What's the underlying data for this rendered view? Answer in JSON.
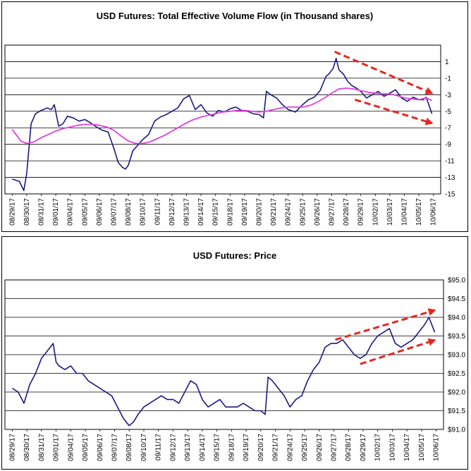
{
  "chart_data": [
    {
      "type": "line",
      "title": "USD Futures: Total Effective Volume Flow (in Thousand shares)",
      "ylim": [
        -15,
        3
      ],
      "yticks": [
        1,
        -1,
        -3,
        -5,
        -7,
        -9,
        -11,
        -13,
        -15
      ],
      "ytick_labels": [
        "1",
        "-1",
        "-3",
        "-5",
        "-7",
        "-9",
        "-11",
        "-13",
        "-15"
      ],
      "grid": true,
      "x_labels": [
        "08/29/17",
        "08/30/17",
        "08/31/17",
        "09/01/17",
        "09/04/17",
        "09/05/17",
        "09/06/17",
        "09/07/17",
        "09/08/17",
        "09/10/17",
        "09/11/17",
        "09/12/17",
        "09/13/17",
        "09/14/17",
        "09/15/17",
        "09/18/17",
        "09/19/17",
        "09/20/17",
        "09/21/17",
        "09/24/17",
        "09/25/17",
        "09/26/17",
        "09/27/17",
        "09/28/17",
        "09/29/17",
        "10/02/17",
        "10/03/17",
        "10/04/17",
        "10/05/17",
        "10/06/17"
      ],
      "series": [
        {
          "color": "#1a1a80",
          "x": [
            0,
            0.5,
            0.8,
            1.0,
            1.3,
            1.6,
            2.0,
            2.4,
            2.7,
            2.9,
            3.2,
            3.5,
            3.8,
            4.2,
            4.6,
            5.0,
            5.4,
            5.8,
            6.2,
            6.6,
            7.0,
            7.3,
            7.6,
            7.8,
            8.0,
            8.3,
            8.6,
            9.0,
            9.4,
            9.8,
            10.2,
            10.6,
            11.0,
            11.4,
            11.8,
            12.2,
            12.6,
            13.0,
            13.4,
            13.8,
            14.2,
            14.6,
            15.0,
            15.4,
            15.8,
            16.2,
            16.6,
            17.0,
            17.3,
            17.5,
            17.8,
            18.2,
            18.6,
            19.0,
            19.5,
            20.0,
            20.4,
            20.8,
            21.2,
            21.6,
            21.8,
            22.1,
            22.3,
            22.5,
            22.8,
            23.1,
            23.4,
            23.7,
            24.0,
            24.4,
            24.8,
            25.2,
            25.6,
            26.0,
            26.4,
            26.8,
            27.2,
            27.6,
            28.0,
            28.3,
            28.5,
            28.7,
            28.9
          ],
          "values": [
            -13.2,
            -13.5,
            -14.6,
            -12.5,
            -6.5,
            -5.3,
            -4.9,
            -4.6,
            -4.8,
            -4.2,
            -6.8,
            -6.5,
            -5.6,
            -5.8,
            -6.2,
            -6.0,
            -6.4,
            -6.9,
            -7.3,
            -7.5,
            -9.5,
            -11.2,
            -11.8,
            -12.0,
            -11.5,
            -9.8,
            -9.2,
            -8.4,
            -7.8,
            -6.2,
            -5.7,
            -5.4,
            -5.0,
            -4.6,
            -3.5,
            -3.1,
            -4.8,
            -4.2,
            -5.2,
            -5.6,
            -4.9,
            -5.1,
            -4.7,
            -4.5,
            -4.9,
            -5.0,
            -5.3,
            -5.4,
            -5.8,
            -2.6,
            -3.0,
            -3.4,
            -4.2,
            -4.8,
            -5.1,
            -4.2,
            -3.6,
            -3.3,
            -2.5,
            -0.8,
            -0.5,
            0.2,
            1.4,
            0.0,
            -0.5,
            -1.4,
            -1.9,
            -2.2,
            -2.6,
            -3.4,
            -3.0,
            -2.6,
            -3.2,
            -2.8,
            -2.4,
            -3.4,
            -3.8,
            -3.3,
            -3.6,
            -3.6,
            -3.3,
            -4.3,
            -5.3
          ]
        },
        {
          "color": "#e040e0",
          "x": [
            0,
            0.3,
            0.6,
            1.0,
            1.5,
            2.0,
            2.5,
            3.0,
            3.5,
            4.0,
            4.5,
            5.0,
            5.5,
            6.0,
            6.5,
            7.0,
            7.5,
            8.0,
            8.5,
            9.0,
            9.5,
            10.0,
            10.5,
            11.0,
            11.5,
            12.0,
            12.5,
            13.0,
            13.5,
            14.0,
            14.5,
            15.0,
            15.5,
            16.0,
            16.5,
            17.0,
            17.5,
            18.0,
            18.5,
            19.0,
            19.5,
            20.0,
            20.5,
            21.0,
            21.5,
            22.0,
            22.5,
            23.0,
            23.5,
            24.0,
            24.5,
            25.0,
            25.5,
            26.0,
            26.5,
            27.0,
            27.5,
            28.0,
            28.5,
            28.9
          ],
          "values": [
            -7.2,
            -7.9,
            -8.6,
            -8.9,
            -8.7,
            -8.2,
            -7.8,
            -7.4,
            -7.1,
            -6.9,
            -6.7,
            -6.6,
            -6.6,
            -6.7,
            -6.9,
            -7.3,
            -8.0,
            -8.6,
            -8.9,
            -8.9,
            -8.7,
            -8.3,
            -7.9,
            -7.4,
            -6.9,
            -6.4,
            -6.0,
            -5.7,
            -5.5,
            -5.3,
            -5.1,
            -5.0,
            -4.9,
            -4.9,
            -5.0,
            -5.1,
            -5.0,
            -4.8,
            -4.6,
            -4.5,
            -4.5,
            -4.5,
            -4.3,
            -3.9,
            -3.4,
            -2.8,
            -2.3,
            -2.2,
            -2.3,
            -2.5,
            -2.7,
            -2.8,
            -2.9,
            -2.9,
            -3.1,
            -3.4,
            -3.5,
            -3.6,
            -3.4,
            -3.7
          ]
        }
      ],
      "annotations": [
        {
          "kind": "dashed-arrow",
          "color": "#e8261f",
          "from": [
            22.2,
            2.2
          ],
          "to": [
            29.0,
            -2.9
          ]
        },
        {
          "kind": "dashed-arrow",
          "color": "#e8261f",
          "from": [
            23.6,
            -3.6
          ],
          "to": [
            29.0,
            -6.5
          ]
        }
      ]
    },
    {
      "type": "line",
      "title": "USD Futures: Price",
      "ylim": [
        91.0,
        95.0
      ],
      "yticks": [
        95.0,
        94.5,
        94.0,
        93.5,
        93.0,
        92.5,
        92.0,
        91.5,
        91.0
      ],
      "ytick_labels": [
        "$95.0",
        "$94.5",
        "$94.0",
        "$93.5",
        "$93.0",
        "$92.5",
        "$92.0",
        "$91.5",
        "$91.0"
      ],
      "grid": true,
      "x_labels": [
        "08/29/17",
        "08/30/17",
        "08/31/17",
        "09/01/17",
        "09/04/17",
        "09/05/17",
        "09/06/17",
        "09/07/17",
        "09/08/17",
        "09/10/17",
        "09/11/17",
        "09/12/17",
        "09/13/17",
        "09/14/17",
        "09/15/17",
        "09/18/17",
        "09/19/17",
        "09/20/17",
        "09/21/17",
        "09/24/17",
        "09/25/17",
        "09/26/17",
        "09/27/17",
        "09/28/17",
        "09/29/17",
        "10/02/17",
        "10/03/17",
        "10/04/17",
        "10/05/17",
        "10/06/17"
      ],
      "series": [
        {
          "color": "#1a1a80",
          "x": [
            0,
            0.4,
            0.8,
            1.2,
            1.6,
            2.0,
            2.4,
            2.8,
            3.0,
            3.2,
            3.6,
            4.0,
            4.4,
            4.8,
            5.2,
            5.6,
            6.0,
            6.4,
            6.8,
            7.2,
            7.6,
            8.0,
            8.3,
            8.6,
            9.0,
            9.4,
            9.8,
            10.2,
            10.6,
            11.0,
            11.4,
            11.8,
            12.2,
            12.6,
            13.0,
            13.4,
            13.8,
            14.2,
            14.6,
            15.0,
            15.4,
            15.8,
            16.2,
            16.6,
            17.0,
            17.3,
            17.5,
            17.8,
            18.2,
            18.6,
            19.0,
            19.4,
            19.8,
            20.2,
            20.6,
            21.0,
            21.4,
            21.8,
            22.2,
            22.6,
            23.0,
            23.4,
            23.8,
            24.2,
            24.6,
            25.0,
            25.4,
            25.8,
            26.2,
            26.6,
            27.0,
            27.4,
            27.8,
            28.2,
            28.5,
            28.7,
            28.9
          ],
          "values": [
            92.1,
            92.0,
            91.7,
            92.2,
            92.5,
            92.9,
            93.1,
            93.3,
            92.8,
            92.7,
            92.6,
            92.7,
            92.5,
            92.5,
            92.3,
            92.2,
            92.1,
            92.0,
            91.9,
            91.6,
            91.3,
            91.1,
            91.2,
            91.4,
            91.6,
            91.7,
            91.8,
            91.9,
            91.8,
            91.8,
            91.7,
            92.0,
            92.3,
            92.2,
            91.8,
            91.6,
            91.7,
            91.8,
            91.6,
            91.6,
            91.6,
            91.7,
            91.6,
            91.5,
            91.5,
            91.4,
            92.4,
            92.3,
            92.1,
            91.9,
            91.6,
            91.8,
            91.9,
            92.3,
            92.6,
            92.8,
            93.2,
            93.3,
            93.3,
            93.4,
            93.2,
            93.0,
            92.9,
            93.0,
            93.3,
            93.5,
            93.6,
            93.7,
            93.3,
            93.2,
            93.3,
            93.4,
            93.6,
            93.8,
            94.0,
            93.8,
            93.6
          ]
        }
      ],
      "annotations": [
        {
          "kind": "dashed-arrow",
          "color": "#e8261f",
          "from": [
            22.1,
            93.4
          ],
          "to": [
            29.0,
            94.2
          ]
        },
        {
          "kind": "dashed-arrow",
          "color": "#e8261f",
          "from": [
            23.8,
            92.75
          ],
          "to": [
            29.0,
            93.4
          ]
        }
      ]
    }
  ]
}
